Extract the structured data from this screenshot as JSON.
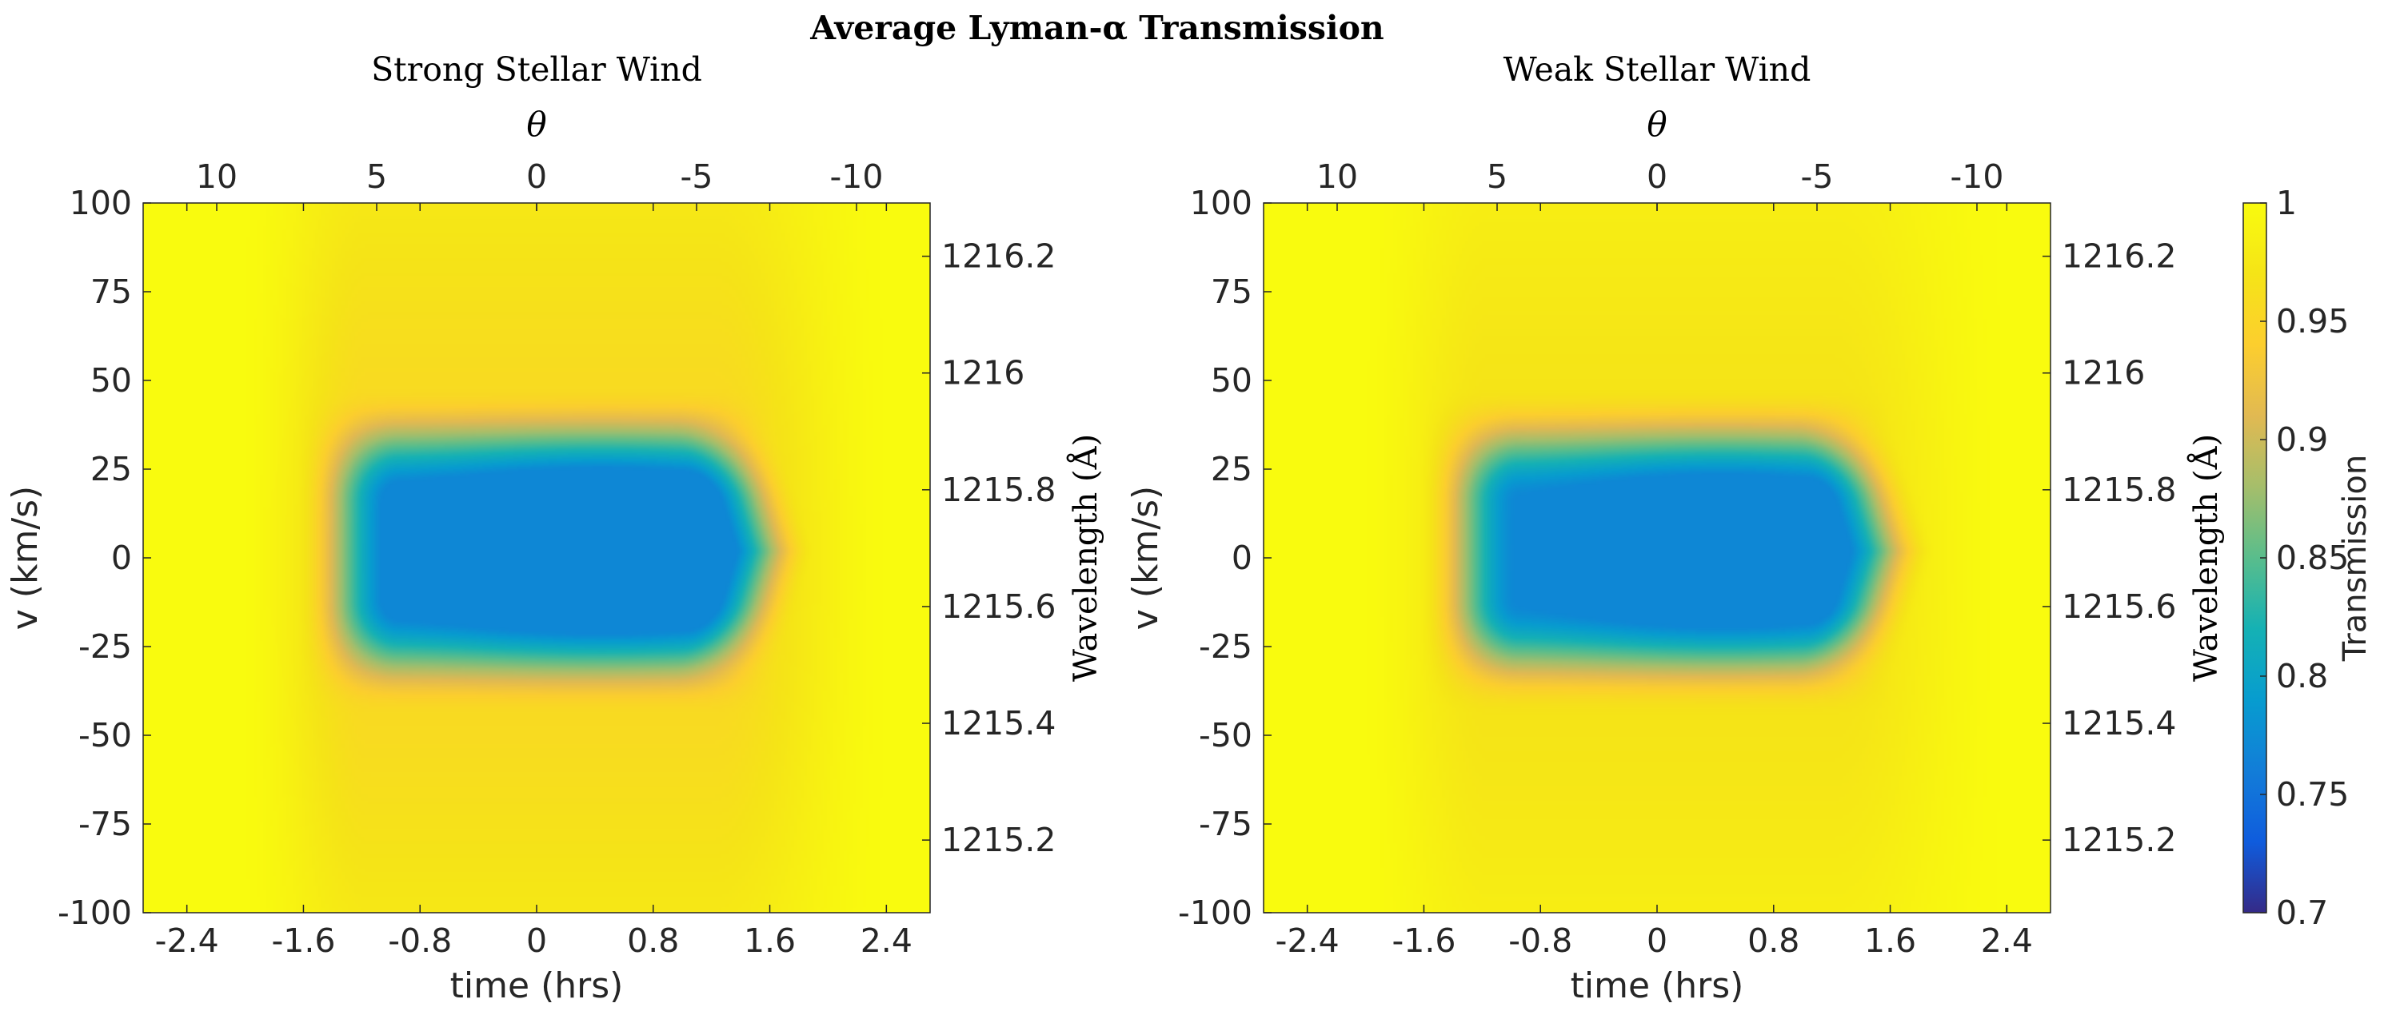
{
  "title": "Average Lyman-α Transmission",
  "chart_data": [
    {
      "type": "heatmap",
      "subtitle": "Strong Stellar Wind",
      "xlabel": "time (hrs)",
      "ylabel": "v (km/s)",
      "top_xlabel": "θ",
      "right_ylabel": "Wavelength (Å)",
      "xlim": [
        -2.7,
        2.7
      ],
      "ylim": [
        -100,
        100
      ],
      "x_ticks": [
        -2.4,
        -1.6,
        -0.8,
        0,
        0.8,
        1.6,
        2.4
      ],
      "x_tick_labels": [
        "-2.4",
        "-1.6",
        "-0.8",
        "0",
        "0.8",
        "1.6",
        "2.4"
      ],
      "y_ticks": [
        -100,
        -75,
        -50,
        -25,
        0,
        25,
        50,
        75,
        100
      ],
      "y_tick_labels": [
        "-100",
        "-75",
        "-50",
        "-25",
        "0",
        "25",
        "50",
        "75",
        "100"
      ],
      "top_ticks": [
        10,
        5,
        0,
        -5,
        -10
      ],
      "top_tick_labels": [
        "10",
        "5",
        "0",
        "-5",
        "-10"
      ],
      "top_lim": [
        12.3,
        -12.3
      ],
      "right_ticks": [
        1215.2,
        1215.4,
        1215.6,
        1215.8,
        1216.0,
        1216.2
      ],
      "right_tick_labels": [
        "1215.2",
        "1215.4",
        "1215.6",
        "1215.8",
        "1216",
        "1216.2"
      ],
      "right_lim": [
        1215.0756,
        1216.2912
      ],
      "transmission_min": 0.77,
      "absorption_core": {
        "t_range": [
          -1.3,
          1.4
        ],
        "v_range": [
          -28,
          32
        ],
        "tail_t": 1.9
      },
      "wing_depth": 0.05
    },
    {
      "type": "heatmap",
      "subtitle": "Weak Stellar Wind",
      "xlabel": "time (hrs)",
      "ylabel": "v (km/s)",
      "top_xlabel": "θ",
      "right_ylabel": "Wavelength (Å)",
      "xlim": [
        -2.7,
        2.7
      ],
      "ylim": [
        -100,
        100
      ],
      "x_ticks": [
        -2.4,
        -1.6,
        -0.8,
        0,
        0.8,
        1.6,
        2.4
      ],
      "x_tick_labels": [
        "-2.4",
        "-1.6",
        "-0.8",
        "0",
        "0.8",
        "1.6",
        "2.4"
      ],
      "y_ticks": [
        -100,
        -75,
        -50,
        -25,
        0,
        25,
        50,
        75,
        100
      ],
      "y_tick_labels": [
        "-100",
        "-75",
        "-50",
        "-25",
        "0",
        "25",
        "50",
        "75",
        "100"
      ],
      "top_ticks": [
        10,
        5,
        0,
        -5,
        -10
      ],
      "top_tick_labels": [
        "10",
        "5",
        "0",
        "-5",
        "-10"
      ],
      "top_lim": [
        12.3,
        -12.3
      ],
      "right_ticks": [
        1215.2,
        1215.4,
        1215.6,
        1215.8,
        1216.0,
        1216.2
      ],
      "right_tick_labels": [
        "1215.2",
        "1215.4",
        "1215.6",
        "1215.8",
        "1216",
        "1216.2"
      ],
      "right_lim": [
        1215.0756,
        1216.2912
      ],
      "transmission_min": 0.77,
      "absorption_core": {
        "t_range": [
          -1.3,
          1.4
        ],
        "v_range": [
          -28,
          32
        ],
        "tail_t": 1.9
      },
      "wing_depth": 0.035
    }
  ],
  "colorbar": {
    "label": "Transmission",
    "range": [
      0.7,
      1
    ],
    "ticks": [
      0.7,
      0.75,
      0.8,
      0.85,
      0.9,
      0.95,
      1
    ],
    "tick_labels": [
      "0.7",
      "0.75",
      "0.8",
      "0.85",
      "0.9",
      "0.95",
      "1"
    ],
    "colormap": "parula"
  }
}
